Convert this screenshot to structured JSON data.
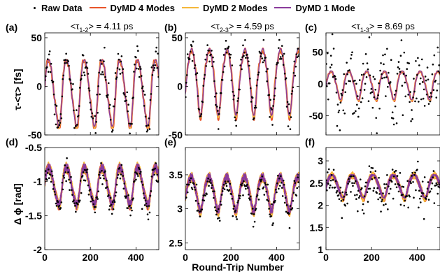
{
  "legend": {
    "raw": "Raw Data",
    "m4": "DyMD 4 Modes",
    "m2": "DyMD 2 Modes",
    "m1": "DyMD 1 Mode"
  },
  "colors": {
    "raw": "#000000",
    "m4": "#e8542a",
    "m2": "#f5b73a",
    "m1": "#8a3b9c"
  },
  "xlabel": "Round-Trip Number",
  "ylabel_top": "τ-<τ> [fs]",
  "ylabel_bottom": "Δ ϕ [rad]",
  "chart_data": [
    {
      "type": "line",
      "panel": "(a)",
      "title_pre": "<τ",
      "title_sub": "1-2",
      "title_post": "> = 4.11 ps",
      "xlim": [
        0,
        500
      ],
      "ylim": [
        -50,
        55
      ],
      "xticks": [
        0,
        200,
        400
      ],
      "yticks": [
        -50,
        0,
        50
      ],
      "period": 78,
      "phase": 0.0,
      "amp": 34,
      "offset": -5,
      "raw_noise": 9,
      "series": [
        {
          "key": "raw",
          "name": "Raw Data"
        },
        {
          "key": "m4",
          "name": "DyMD 4 Modes"
        },
        {
          "key": "m2",
          "name": "DyMD 2 Modes"
        },
        {
          "key": "m1",
          "name": "DyMD 1 Mode"
        }
      ]
    },
    {
      "type": "line",
      "panel": "(b)",
      "title_pre": "<τ",
      "title_sub": "2-3",
      "title_post": "> = 4.59 ps",
      "xlim": [
        0,
        500
      ],
      "ylim": [
        -50,
        55
      ],
      "xticks": [
        0,
        200,
        400
      ],
      "yticks": [
        -50,
        0,
        50
      ],
      "period": 78,
      "phase": 0.6,
      "amp": 33,
      "offset": 8,
      "raw_noise": 7,
      "series": [
        {
          "key": "raw",
          "name": "Raw Data"
        },
        {
          "key": "m4",
          "name": "DyMD 4 Modes"
        },
        {
          "key": "m2",
          "name": "DyMD 2 Modes"
        },
        {
          "key": "m1",
          "name": "DyMD 1 Mode"
        }
      ]
    },
    {
      "type": "line",
      "panel": "(c)",
      "title_pre": "<τ",
      "title_sub": "1-3",
      "title_post": "> = 8.69 ps",
      "xlim": [
        0,
        500
      ],
      "ylim": [
        -80,
        80
      ],
      "xticks": [
        0,
        200,
        400
      ],
      "yticks": [
        -50,
        0,
        50
      ],
      "period": 78,
      "phase": 0.3,
      "amp": 22,
      "offset": 0,
      "raw_noise": 24,
      "series": [
        {
          "key": "raw",
          "name": "Raw Data"
        },
        {
          "key": "m4",
          "name": "DyMD 4 Modes"
        },
        {
          "key": "m2",
          "name": "DyMD 2 Modes"
        },
        {
          "key": "m1",
          "name": "DyMD 1 Mode"
        }
      ]
    },
    {
      "type": "line",
      "panel": "(d)",
      "xlim": [
        0,
        500
      ],
      "ylim": [
        -2,
        -0.5
      ],
      "xticks": [
        0,
        200,
        400
      ],
      "yticks": [
        -2,
        -1.5,
        -1,
        -0.5
      ],
      "period": 78,
      "phase": 0.0,
      "amp": 0.27,
      "offset": -1.05,
      "raw_noise": 0.08,
      "series": [
        {
          "key": "raw",
          "name": "Raw Data"
        },
        {
          "key": "m4",
          "name": "DyMD 4 Modes"
        },
        {
          "key": "m2",
          "name": "DyMD 2 Modes"
        },
        {
          "key": "m1",
          "name": "DyMD 1 Mode"
        }
      ]
    },
    {
      "type": "line",
      "panel": "(e)",
      "xlim": [
        0,
        500
      ],
      "ylim": [
        2.4,
        3.9
      ],
      "xticks": [
        0,
        200,
        400
      ],
      "yticks": [
        2.5,
        3,
        3.5
      ],
      "period": 78,
      "phase": 0.5,
      "amp": 0.24,
      "offset": 3.25,
      "raw_noise": 0.08,
      "series": [
        {
          "key": "raw",
          "name": "Raw Data"
        },
        {
          "key": "m4",
          "name": "DyMD 4 Modes"
        },
        {
          "key": "m2",
          "name": "DyMD 2 Modes"
        },
        {
          "key": "m1",
          "name": "DyMD 1 Mode"
        }
      ]
    },
    {
      "type": "line",
      "panel": "(f)",
      "xlim": [
        0,
        500
      ],
      "ylim": [
        1,
        3.3
      ],
      "xticks": [
        0,
        200,
        400
      ],
      "yticks": [
        1,
        1.5,
        2,
        2.5,
        3
      ],
      "period": 90,
      "phase": 0.3,
      "amp": 0.25,
      "offset": 2.45,
      "raw_noise": 0.22,
      "series": [
        {
          "key": "raw",
          "name": "Raw Data"
        },
        {
          "key": "m4",
          "name": "DyMD 4 Modes"
        },
        {
          "key": "m2",
          "name": "DyMD 2 Modes"
        },
        {
          "key": "m1",
          "name": "DyMD 1 Mode"
        }
      ]
    }
  ]
}
